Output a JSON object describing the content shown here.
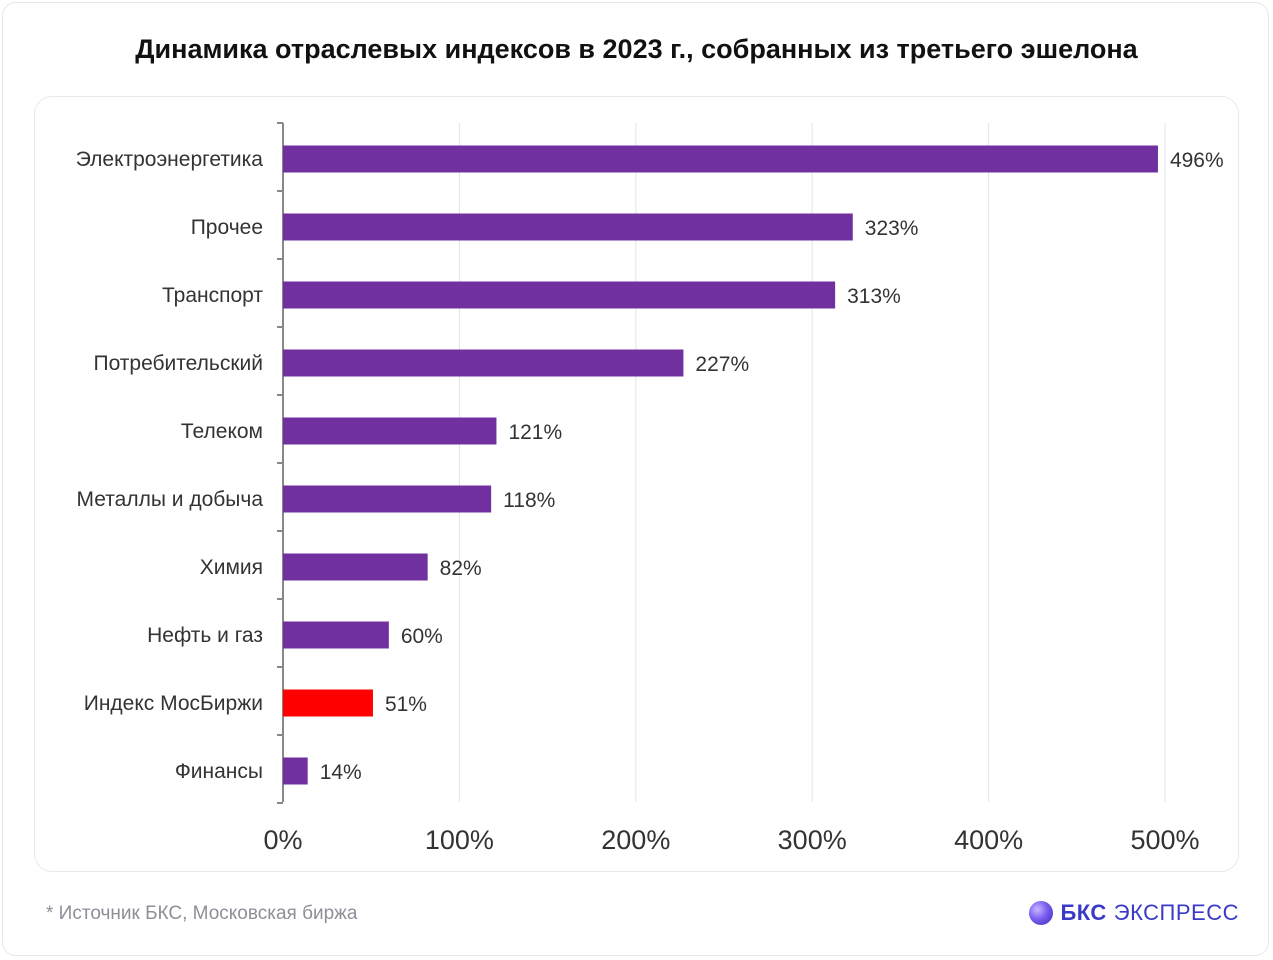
{
  "title": "Динамика отраслевых индексов в 2023 г., собранных из третьего эшелона",
  "footnote": "*  Источник БКС, Московская биржа",
  "brand": {
    "name": "БКС",
    "sub": "ЭКСПРЕСС"
  },
  "colors": {
    "bar": "#7030a0",
    "highlight": "#ff0000",
    "grid": "#e3e3e3",
    "axis": "#888888",
    "label": "#333333"
  },
  "chart_data": {
    "type": "bar",
    "orientation": "horizontal",
    "categories": [
      "Электроэнергетика",
      "Прочее",
      "Транспорт",
      "Потребительский",
      "Телеком",
      "Металлы и добыча",
      "Химия",
      "Нефть и газ",
      "Индекс МосБиржи",
      "Финансы"
    ],
    "values": [
      496,
      323,
      313,
      227,
      121,
      118,
      82,
      60,
      51,
      14
    ],
    "value_labels": [
      "496%",
      "323%",
      "313%",
      "227%",
      "121%",
      "118%",
      "82%",
      "60%",
      "51%",
      "14%"
    ],
    "highlight": "Индекс МосБиржи",
    "xlim": [
      0,
      500
    ],
    "xticks": [
      0,
      100,
      200,
      300,
      400,
      500
    ],
    "xtick_labels": [
      "0%",
      "100%",
      "200%",
      "300%",
      "400%",
      "500%"
    ],
    "grid": true,
    "xlabel": "",
    "ylabel": ""
  }
}
